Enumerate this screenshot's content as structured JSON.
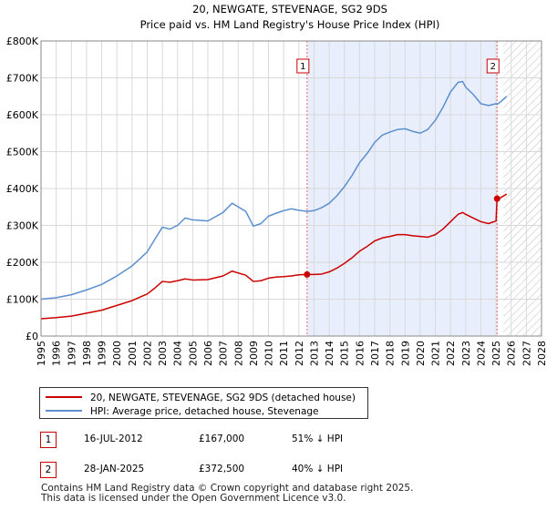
{
  "chart_data": {
    "type": "line",
    "title": "20, NEWGATE, STEVENAGE, SG2 9DS",
    "subtitle": "Price paid vs. HM Land Registry's House Price Index (HPI)",
    "xlabel": "",
    "ylabel": "",
    "xlim": [
      1995,
      2028
    ],
    "ylim": [
      0,
      800000
    ],
    "x_ticks": [
      1995,
      1996,
      1997,
      1998,
      1999,
      2000,
      2001,
      2002,
      2003,
      2004,
      2005,
      2006,
      2007,
      2008,
      2009,
      2010,
      2011,
      2012,
      2013,
      2014,
      2015,
      2016,
      2017,
      2018,
      2019,
      2020,
      2021,
      2022,
      2023,
      2024,
      2025,
      2026,
      2027,
      2028
    ],
    "y_ticks": [
      0,
      100000,
      200000,
      300000,
      400000,
      500000,
      600000,
      700000,
      800000
    ],
    "y_tick_labels": [
      "£0",
      "£100K",
      "£200K",
      "£300K",
      "£400K",
      "£500K",
      "£600K",
      "£700K",
      "£800K"
    ],
    "grid": true,
    "series": [
      {
        "name": "20, NEWGATE, STEVENAGE, SG2 9DS (detached house)",
        "color": "#cc0000",
        "points": [
          [
            1995.0,
            47000
          ],
          [
            1996.0,
            50000
          ],
          [
            1997.0,
            54000
          ],
          [
            1998.0,
            62000
          ],
          [
            1999.0,
            70000
          ],
          [
            2000.0,
            83000
          ],
          [
            2001.0,
            96000
          ],
          [
            2002.0,
            114000
          ],
          [
            2002.5,
            130000
          ],
          [
            2003.0,
            148000
          ],
          [
            2003.5,
            146000
          ],
          [
            2004.0,
            150000
          ],
          [
            2004.5,
            155000
          ],
          [
            2005.0,
            152000
          ],
          [
            2006.0,
            153000
          ],
          [
            2007.0,
            163000
          ],
          [
            2007.6,
            176000
          ],
          [
            2008.5,
            165000
          ],
          [
            2009.0,
            148000
          ],
          [
            2009.5,
            150000
          ],
          [
            2010.0,
            157000
          ],
          [
            2010.5,
            160000
          ],
          [
            2011.0,
            161000
          ],
          [
            2011.5,
            163000
          ],
          [
            2012.0,
            166000
          ],
          [
            2012.54,
            167000
          ],
          [
            2013.0,
            167000
          ],
          [
            2013.5,
            168000
          ],
          [
            2014.0,
            174000
          ],
          [
            2014.5,
            184000
          ],
          [
            2015.0,
            197000
          ],
          [
            2015.5,
            212000
          ],
          [
            2016.0,
            230000
          ],
          [
            2016.5,
            243000
          ],
          [
            2017.0,
            258000
          ],
          [
            2017.5,
            266000
          ],
          [
            2018.0,
            270000
          ],
          [
            2018.5,
            275000
          ],
          [
            2019.0,
            275000
          ],
          [
            2019.5,
            272000
          ],
          [
            2020.0,
            270000
          ],
          [
            2020.5,
            268000
          ],
          [
            2021.0,
            275000
          ],
          [
            2021.5,
            290000
          ],
          [
            2022.0,
            310000
          ],
          [
            2022.5,
            330000
          ],
          [
            2022.8,
            335000
          ],
          [
            2023.0,
            330000
          ],
          [
            2023.5,
            320000
          ],
          [
            2024.0,
            310000
          ],
          [
            2024.5,
            305000
          ],
          [
            2025.0,
            312000
          ],
          [
            2025.07,
            372500
          ],
          [
            2025.3,
            375000
          ],
          [
            2025.7,
            385000
          ]
        ]
      },
      {
        "name": "HPI: Average price, detached house, Stevenage",
        "color": "#5b8fd0",
        "points": [
          [
            1995.0,
            100000
          ],
          [
            1996.0,
            104000
          ],
          [
            1997.0,
            112000
          ],
          [
            1998.0,
            125000
          ],
          [
            1999.0,
            140000
          ],
          [
            2000.0,
            163000
          ],
          [
            2001.0,
            190000
          ],
          [
            2002.0,
            228000
          ],
          [
            2002.5,
            262000
          ],
          [
            2003.0,
            295000
          ],
          [
            2003.5,
            290000
          ],
          [
            2004.0,
            300000
          ],
          [
            2004.5,
            320000
          ],
          [
            2005.0,
            315000
          ],
          [
            2006.0,
            312000
          ],
          [
            2007.0,
            335000
          ],
          [
            2007.6,
            360000
          ],
          [
            2008.5,
            338000
          ],
          [
            2009.0,
            298000
          ],
          [
            2009.5,
            305000
          ],
          [
            2010.0,
            325000
          ],
          [
            2010.5,
            333000
          ],
          [
            2011.0,
            340000
          ],
          [
            2011.5,
            345000
          ],
          [
            2012.0,
            341000
          ],
          [
            2012.54,
            338000
          ],
          [
            2013.0,
            340000
          ],
          [
            2013.5,
            348000
          ],
          [
            2014.0,
            360000
          ],
          [
            2014.5,
            380000
          ],
          [
            2015.0,
            405000
          ],
          [
            2015.5,
            435000
          ],
          [
            2016.0,
            470000
          ],
          [
            2016.5,
            495000
          ],
          [
            2017.0,
            525000
          ],
          [
            2017.5,
            545000
          ],
          [
            2018.0,
            553000
          ],
          [
            2018.5,
            560000
          ],
          [
            2019.0,
            562000
          ],
          [
            2019.5,
            555000
          ],
          [
            2020.0,
            550000
          ],
          [
            2020.5,
            560000
          ],
          [
            2021.0,
            585000
          ],
          [
            2021.5,
            620000
          ],
          [
            2022.0,
            662000
          ],
          [
            2022.5,
            688000
          ],
          [
            2022.8,
            690000
          ],
          [
            2023.0,
            675000
          ],
          [
            2023.5,
            655000
          ],
          [
            2024.0,
            630000
          ],
          [
            2024.5,
            625000
          ],
          [
            2025.0,
            630000
          ],
          [
            2025.07,
            628000
          ],
          [
            2025.3,
            635000
          ],
          [
            2025.7,
            650000
          ]
        ]
      }
    ],
    "markers": [
      {
        "label": "1",
        "x": 2012.54,
        "y": 167000
      },
      {
        "label": "2",
        "x": 2025.07,
        "y": 372500
      }
    ],
    "shaded_region": {
      "from": 2012.54,
      "to": 2025.07,
      "color": "#e8eefb"
    },
    "future_hatch_from": 2025.5
  },
  "legend": {
    "items": [
      {
        "label": "20, NEWGATE, STEVENAGE, SG2 9DS (detached house)",
        "color": "#cc0000"
      },
      {
        "label": "HPI: Average price, detached house, Stevenage",
        "color": "#5b8fd0"
      }
    ]
  },
  "sales": [
    {
      "num": "1",
      "date": "16-JUL-2012",
      "price": "£167,000",
      "hpi": "51% ↓ HPI"
    },
    {
      "num": "2",
      "date": "28-JAN-2025",
      "price": "£372,500",
      "hpi": "40% ↓ HPI"
    }
  ],
  "footer": {
    "line1": "Contains HM Land Registry data © Crown copyright and database right 2025.",
    "line2": "This data is licensed under the Open Government Licence v3.0."
  }
}
